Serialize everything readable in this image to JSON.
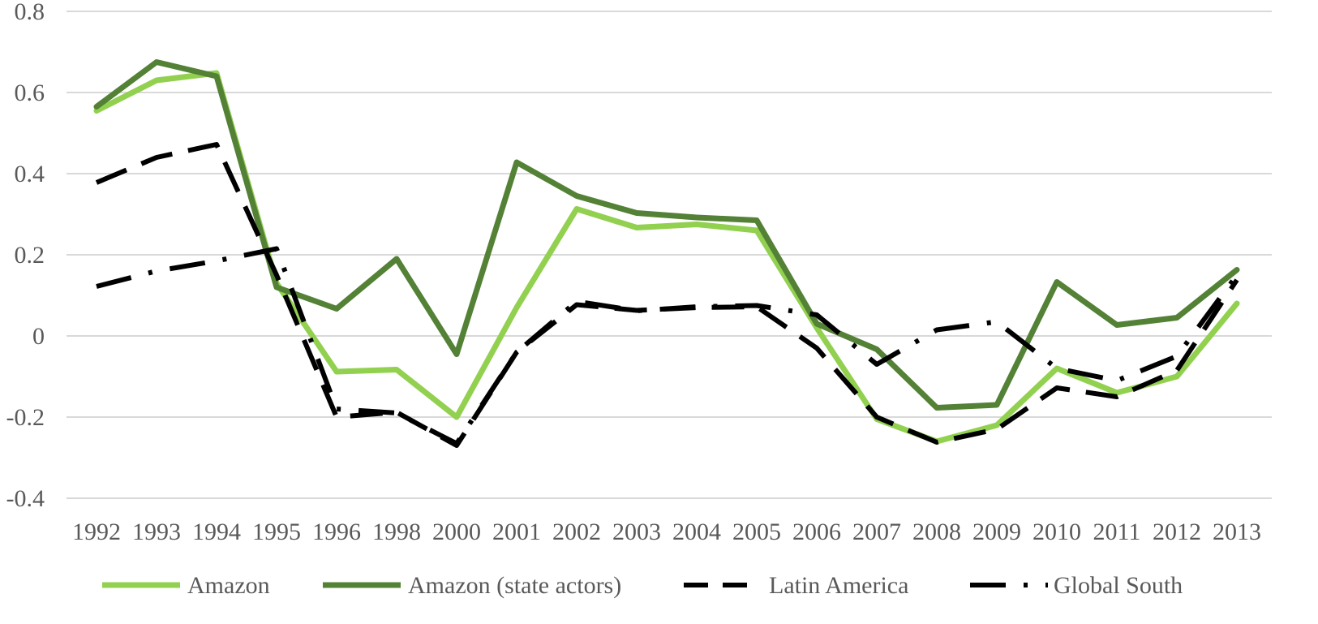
{
  "chart_data": {
    "type": "line",
    "title": "",
    "xlabel": "",
    "ylabel": "",
    "ylim": [
      -0.4,
      0.8
    ],
    "yticks": [
      -0.4,
      -0.2,
      0,
      0.2,
      0.4,
      0.6,
      0.8
    ],
    "ytick_labels": [
      "-0.4",
      "-0.2",
      "0",
      "0.2",
      "0.4",
      "0.6",
      "0.8"
    ],
    "grid": true,
    "legend_position": "bottom",
    "categories": [
      "1992",
      "1993",
      "1994",
      "1995",
      "1996",
      "1998",
      "2000",
      "2001",
      "2002",
      "2003",
      "2004",
      "2005",
      "2006",
      "2007",
      "2008",
      "2009",
      "2010",
      "2011",
      "2012",
      "2013"
    ],
    "series": [
      {
        "name": "Amazon",
        "color": "#92d050",
        "style": "solid",
        "values": [
          0.555,
          0.63,
          0.648,
          0.13,
          -0.088,
          -0.083,
          -0.2,
          0.07,
          0.313,
          0.267,
          0.275,
          0.26,
          0.02,
          -0.205,
          -0.26,
          -0.22,
          -0.08,
          -0.14,
          -0.1,
          0.08
        ]
      },
      {
        "name": "Amazon (state actors)",
        "color": "#538135",
        "style": "solid",
        "values": [
          0.565,
          0.675,
          0.64,
          0.12,
          0.067,
          0.19,
          -0.045,
          0.428,
          0.345,
          0.303,
          0.292,
          0.285,
          0.03,
          -0.033,
          -0.177,
          -0.17,
          0.133,
          0.027,
          0.045,
          0.163
        ]
      },
      {
        "name": "Latin America",
        "color": "#000000",
        "style": "dash",
        "values": [
          0.378,
          0.44,
          0.472,
          0.15,
          -0.2,
          -0.188,
          -0.27,
          -0.04,
          0.077,
          0.063,
          0.07,
          0.072,
          -0.03,
          -0.2,
          -0.262,
          -0.23,
          -0.128,
          -0.15,
          -0.085,
          0.138
        ]
      },
      {
        "name": "Global South",
        "color": "#000000",
        "style": "dashdot",
        "values": [
          0.122,
          0.16,
          0.185,
          0.215,
          -0.18,
          -0.19,
          -0.265,
          -0.04,
          0.085,
          0.062,
          0.072,
          0.075,
          0.052,
          -0.07,
          0.015,
          0.035,
          -0.08,
          -0.11,
          -0.05,
          0.15
        ]
      }
    ]
  }
}
